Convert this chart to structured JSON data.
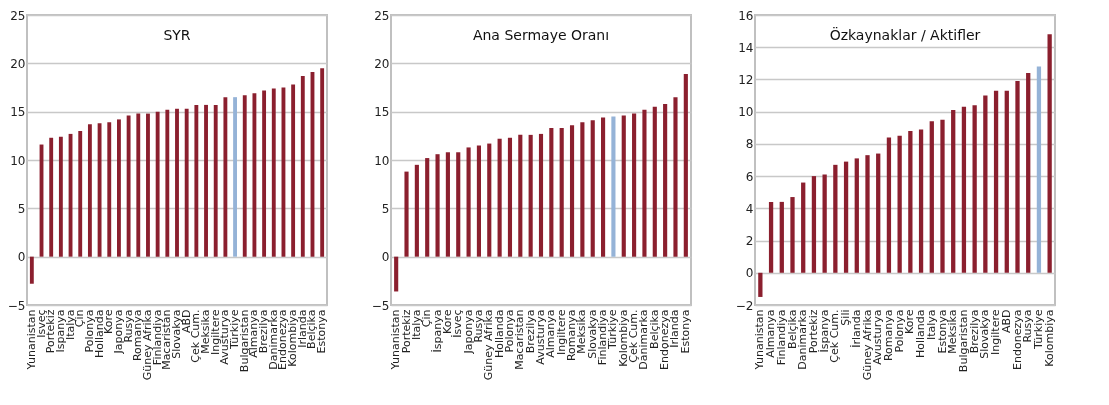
{
  "chart_data": [
    {
      "type": "bar",
      "title": "SYR",
      "categories": [
        "Yunanistan",
        "Isveç",
        "Portekiz",
        "Ispanya",
        "Italya",
        "Çin",
        "Polonya",
        "Hollanda",
        "Kore",
        "Japonya",
        "Rusya",
        "Romanya",
        "Güney Afrika",
        "Finlandiya",
        "Macaristan",
        "Slovakya",
        "ABD",
        "Çek Cum.",
        "Meksika",
        "Ingiltere",
        "Avusturya",
        "Türkiye",
        "Bulgaristan",
        "Almanya",
        "Brezilya",
        "Danimarka",
        "Endonezya",
        "Kolombiya",
        "Irlanda",
        "Belçika",
        "Estonya"
      ],
      "values": [
        -2.8,
        11.6,
        12.3,
        12.4,
        12.7,
        13.0,
        13.7,
        13.8,
        13.9,
        14.2,
        14.6,
        14.8,
        14.8,
        15.0,
        15.2,
        15.3,
        15.3,
        15.7,
        15.7,
        15.7,
        16.5,
        16.5,
        16.7,
        16.9,
        17.2,
        17.4,
        17.5,
        17.8,
        18.7,
        19.1,
        19.5
      ],
      "colors": [
        "#8b1f2e",
        "#8b1f2e",
        "#8b1f2e",
        "#8b1f2e",
        "#8b1f2e",
        "#8b1f2e",
        "#8b1f2e",
        "#8b1f2e",
        "#8b1f2e",
        "#8b1f2e",
        "#8b1f2e",
        "#8b1f2e",
        "#8b1f2e",
        "#8b1f2e",
        "#8b1f2e",
        "#8b1f2e",
        "#8b1f2e",
        "#8b1f2e",
        "#8b1f2e",
        "#8b1f2e",
        "#8b1f2e",
        "#95b3d7",
        "#8b1f2e",
        "#8b1f2e",
        "#8b1f2e",
        "#8b1f2e",
        "#8b1f2e",
        "#8b1f2e",
        "#8b1f2e",
        "#8b1f2e",
        "#8b1f2e"
      ],
      "ylim": [
        -5,
        25
      ],
      "yticks": [
        -5,
        0,
        5,
        10,
        15,
        20,
        25
      ],
      "grid": "y"
    },
    {
      "type": "bar",
      "title": "Ana Sermaye Oranı",
      "categories": [
        "Yunanistan",
        "Portekiz",
        "Italya",
        "Çin",
        "İspanya",
        "Kore",
        "İsveç",
        "Japonya",
        "Rusya",
        "Güney Afrika",
        "Hollanda",
        "Polonya",
        "Macaristan",
        "Brezilya",
        "Avusturya",
        "Almanya",
        "Ingiltere",
        "Romanya",
        "Meksika",
        "Slovakya",
        "Finlandiya",
        "Türkiye",
        "Kolombiya",
        "Çek Cum.",
        "Danimarka",
        "Belçika",
        "Endonezya",
        "İrlanda",
        "Estonya"
      ],
      "values": [
        -3.6,
        8.8,
        9.5,
        10.2,
        10.6,
        10.8,
        10.8,
        11.3,
        11.5,
        11.7,
        12.2,
        12.3,
        12.6,
        12.6,
        12.7,
        13.3,
        13.3,
        13.6,
        13.9,
        14.1,
        14.4,
        14.5,
        14.6,
        14.8,
        15.2,
        15.5,
        15.8,
        16.5,
        18.9
      ],
      "colors": [
        "#8b1f2e",
        "#8b1f2e",
        "#8b1f2e",
        "#8b1f2e",
        "#8b1f2e",
        "#8b1f2e",
        "#8b1f2e",
        "#8b1f2e",
        "#8b1f2e",
        "#8b1f2e",
        "#8b1f2e",
        "#8b1f2e",
        "#8b1f2e",
        "#8b1f2e",
        "#8b1f2e",
        "#8b1f2e",
        "#8b1f2e",
        "#8b1f2e",
        "#8b1f2e",
        "#8b1f2e",
        "#8b1f2e",
        "#95b3d7",
        "#8b1f2e",
        "#8b1f2e",
        "#8b1f2e",
        "#8b1f2e",
        "#8b1f2e",
        "#8b1f2e",
        "#8b1f2e"
      ],
      "ylim": [
        -5,
        25
      ],
      "yticks": [
        -5,
        0,
        5,
        10,
        15,
        20,
        25
      ],
      "grid": "y"
    },
    {
      "type": "bar",
      "title": "Özkaynaklar / Aktifler",
      "categories": [
        "Yunanistan",
        "Almanya",
        "Finlandiya",
        "Belçika",
        "Danimarka",
        "Portekiz",
        "İspanya",
        "Çek Cum.",
        "Şili",
        "İrlanda",
        "Güney Afrika",
        "Avusturya",
        "Romanya",
        "Polonya",
        "Kore",
        "Hollanda",
        "Italya",
        "Estonya",
        "Meksika",
        "Bulgaristan",
        "Brezilya",
        "Slovakya",
        "Ingiltere",
        "ABD",
        "Endonezya",
        "Rusya",
        "Türkiye",
        "Kolombiya"
      ],
      "values": [
        -1.5,
        4.4,
        4.4,
        4.7,
        5.6,
        6.0,
        6.1,
        6.7,
        6.9,
        7.1,
        7.3,
        7.4,
        8.4,
        8.5,
        8.8,
        8.9,
        9.4,
        9.5,
        10.1,
        10.3,
        10.4,
        11.0,
        11.3,
        11.3,
        11.9,
        12.4,
        12.8,
        14.8
      ],
      "colors": [
        "#8b1f2e",
        "#8b1f2e",
        "#8b1f2e",
        "#8b1f2e",
        "#8b1f2e",
        "#8b1f2e",
        "#8b1f2e",
        "#8b1f2e",
        "#8b1f2e",
        "#8b1f2e",
        "#8b1f2e",
        "#8b1f2e",
        "#8b1f2e",
        "#8b1f2e",
        "#8b1f2e",
        "#8b1f2e",
        "#8b1f2e",
        "#8b1f2e",
        "#8b1f2e",
        "#8b1f2e",
        "#8b1f2e",
        "#8b1f2e",
        "#8b1f2e",
        "#8b1f2e",
        "#8b1f2e",
        "#8b1f2e",
        "#95b3d7",
        "#8b1f2e"
      ],
      "ylim": [
        -2,
        16
      ],
      "yticks": [
        -2,
        0,
        2,
        4,
        6,
        8,
        10,
        12,
        14,
        16
      ],
      "grid": "y"
    }
  ]
}
